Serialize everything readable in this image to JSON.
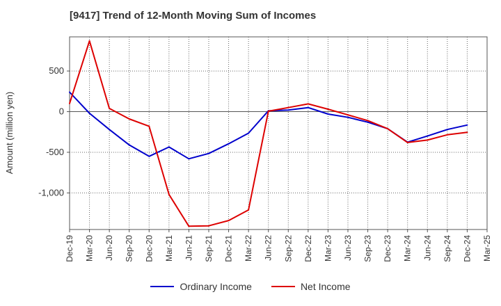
{
  "chart_data": {
    "type": "line",
    "title": "[9417]  Trend of 12-Month Moving Sum of Incomes",
    "ylabel": "Amount (million yen)",
    "xlabel": "",
    "categories": [
      "Dec-19",
      "Mar-20",
      "Jun-20",
      "Sep-20",
      "Dec-20",
      "Mar-21",
      "Jun-21",
      "Sep-21",
      "Dec-21",
      "Mar-22",
      "Jun-22",
      "Sep-22",
      "Dec-22",
      "Mar-23",
      "Jun-23",
      "Sep-23",
      "Dec-23",
      "Mar-24",
      "Jun-24",
      "Sep-24",
      "Dec-24",
      "Mar-25"
    ],
    "yticks": [
      500,
      0,
      -500,
      -1000
    ],
    "ytick_labels": [
      "500",
      "0",
      "-500",
      "-1,000"
    ],
    "ylim": [
      -1450,
      920
    ],
    "grid": true,
    "legend_position": "bottom",
    "series": [
      {
        "name": "Ordinary Income",
        "color": "#0000cc",
        "values": [
          240,
          -20,
          -220,
          -410,
          -550,
          -435,
          -580,
          -515,
          -395,
          -265,
          10,
          20,
          50,
          -30,
          -70,
          -130,
          -210,
          -375,
          -300,
          -220,
          -165,
          null
        ]
      },
      {
        "name": "Net Income",
        "color": "#dd0000",
        "values": [
          100,
          870,
          40,
          -90,
          -180,
          -1020,
          -1410,
          -1405,
          -1340,
          -1210,
          5,
          50,
          95,
          30,
          -40,
          -110,
          -210,
          -380,
          -350,
          -285,
          -255,
          null
        ]
      }
    ]
  }
}
